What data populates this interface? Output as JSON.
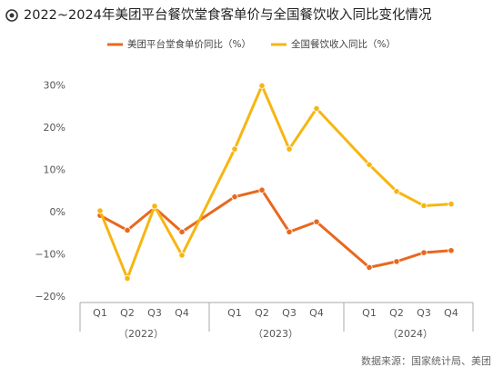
{
  "chart_data": {
    "type": "line",
    "title": "2022~2024年美团平台餐饮堂食客单价与全国餐饮收入同比变化情况",
    "categories": [
      "Q1",
      "Q2",
      "Q3",
      "Q4",
      "Q1",
      "Q2",
      "Q3",
      "Q4",
      "Q1",
      "Q2",
      "Q3",
      "Q4"
    ],
    "groups": [
      "（2022）",
      "（2023）",
      "（2024）"
    ],
    "series": [
      {
        "name": "美团平台堂食单价同比（%）",
        "color": "#e8681e",
        "values": [
          -0.7,
          -4.2,
          1.1,
          -4.6,
          3.7,
          5.3,
          -4.6,
          -2.2,
          -13.0,
          -11.6,
          -9.5,
          -9.0
        ]
      },
      {
        "name": "全国餐饮收入同比（%）",
        "color": "#f6b612",
        "values": [
          0.4,
          -15.6,
          1.5,
          -10.1,
          15.0,
          30.0,
          15.0,
          24.6,
          11.3,
          5.0,
          1.6,
          2.0
        ]
      }
    ],
    "ylim": [
      -21.3,
      32
    ],
    "yticks": [
      {
        "value": 30,
        "label": "30%"
      },
      {
        "value": 20,
        "label": "20%"
      },
      {
        "value": 10,
        "label": "10%"
      },
      {
        "value": 0,
        "label": "0%"
      },
      {
        "value": -10,
        "label": "−10%"
      },
      {
        "value": -20,
        "label": "−20%"
      }
    ],
    "grid": false,
    "source": "数据来源：国家统计局、美团"
  }
}
